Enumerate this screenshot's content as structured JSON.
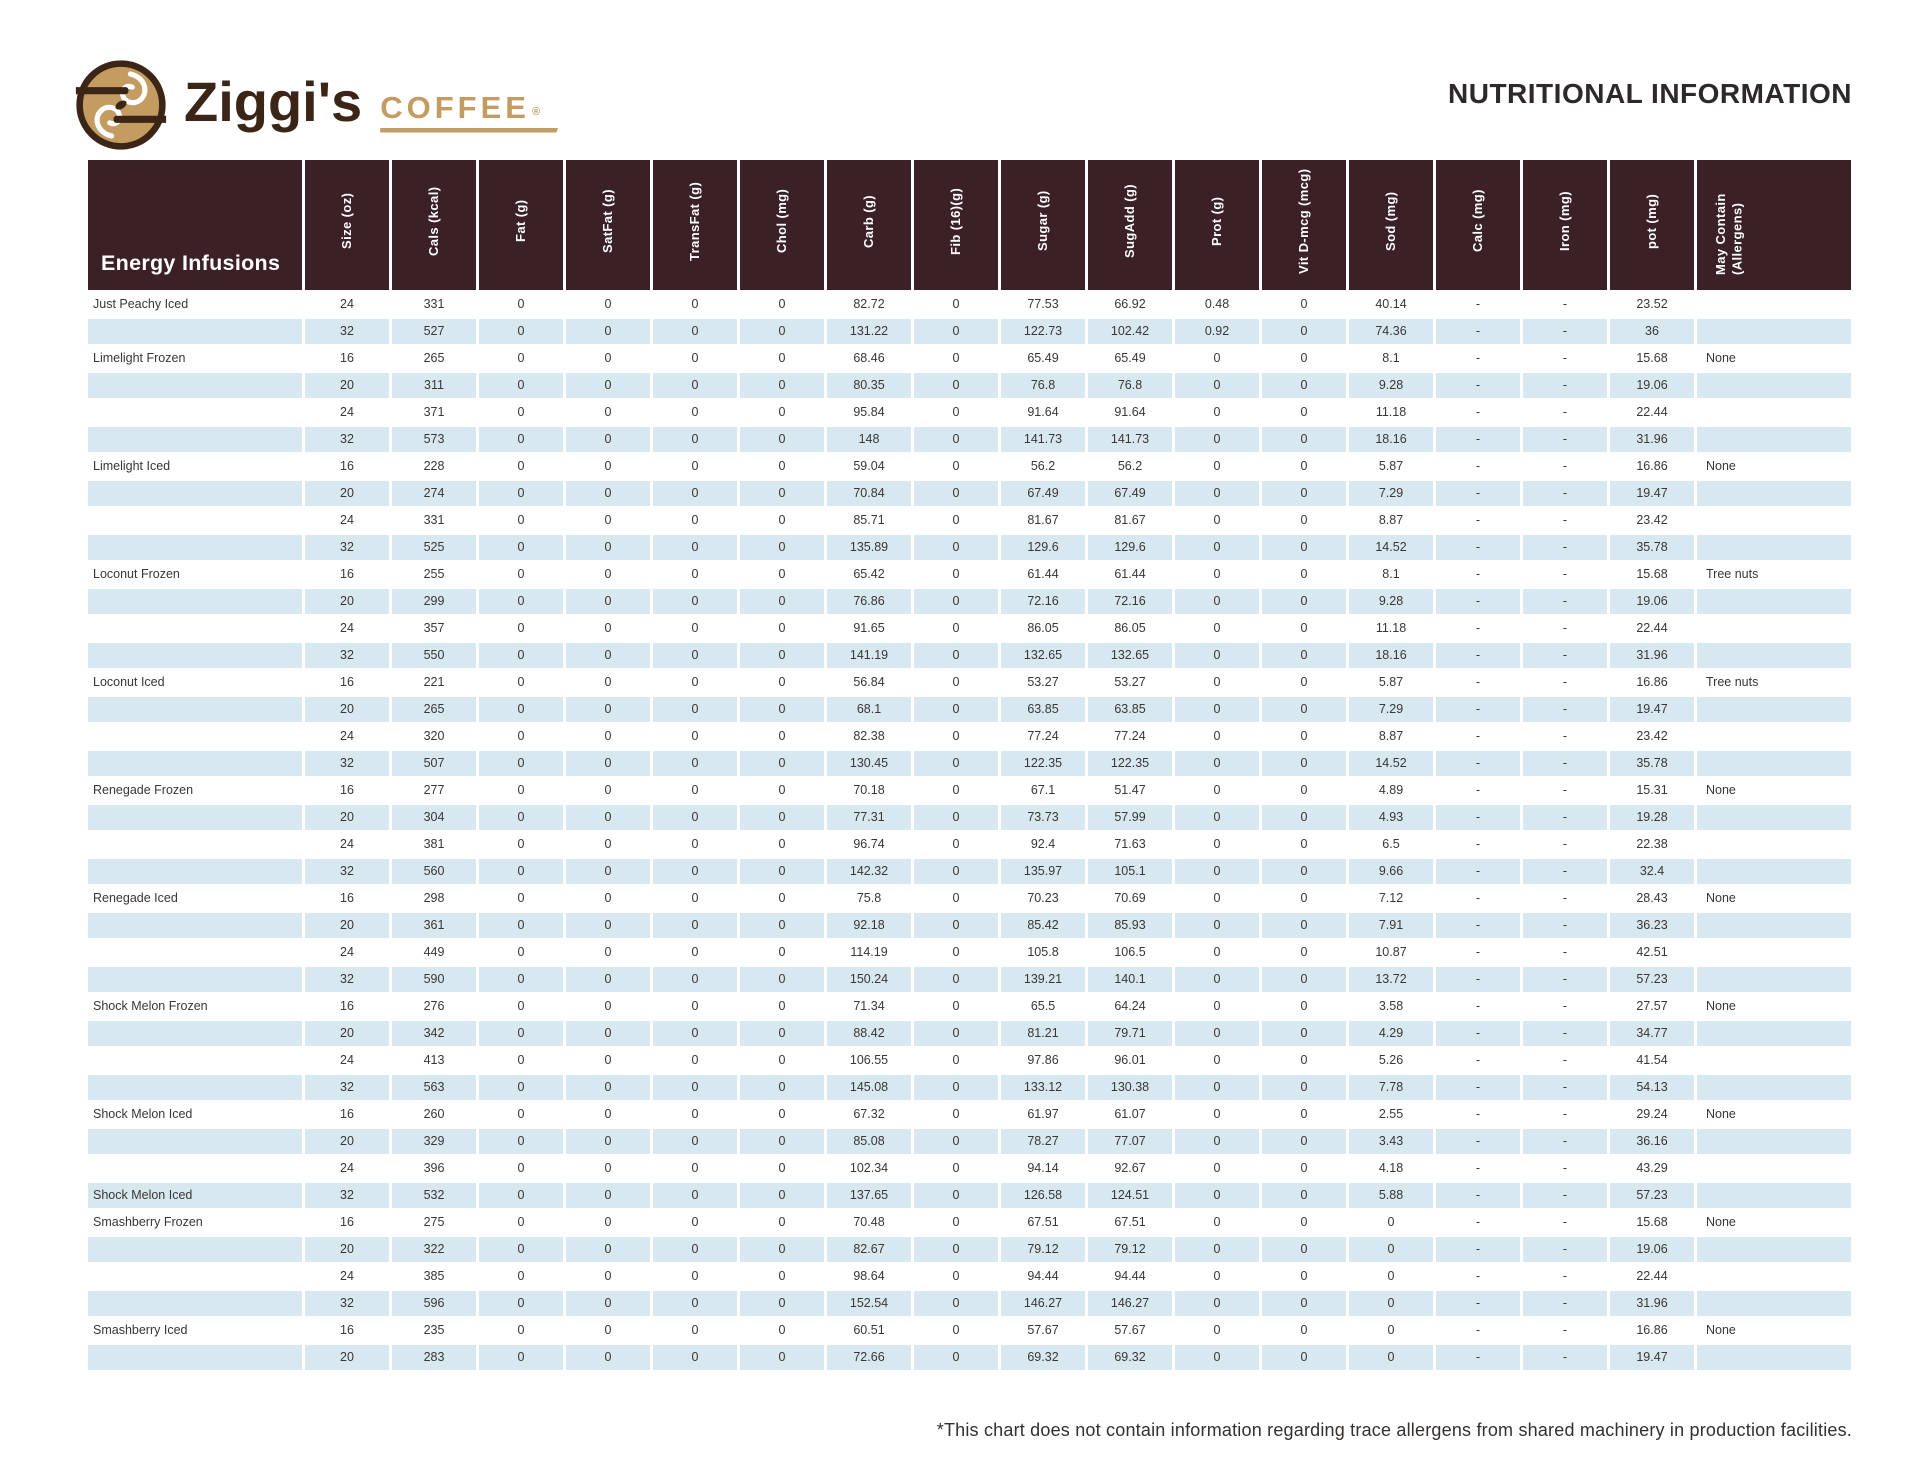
{
  "page": {
    "title": "NUTRITIONAL INFORMATION",
    "footnote": "*This chart does not contain information regarding trace allergens from shared machinery in production facilities."
  },
  "logo": {
    "brand": "Ziggi's",
    "brand_sub": "COFFEE",
    "registered_mark": "®"
  },
  "colors": {
    "header_bg": "#3b2125",
    "row_alt_bg": "#d8e8f0",
    "brand_dark": "#3b2517",
    "brand_tan": "#c49b61",
    "text": "#3a3634"
  },
  "table": {
    "group_header": "Energy Infusions",
    "columns": [
      "Size (oz)",
      "Cals (kcal)",
      "Fat (g)",
      "SatFat (g)",
      "TransFat (g)",
      "Chol (mg)",
      "Carb (g)",
      "Fib (16)(g)",
      "Sugar (g)",
      "SugAdd (g)",
      "Prot (g)",
      "Vit D-mcg (mcg)",
      "Sod (mg)",
      "Calc (mg)",
      "Iron (mg)",
      "pot (mg)",
      "May Contain (Allergens)"
    ],
    "rows": [
      {
        "name": "Just Peachy Iced",
        "values": [
          "24",
          "331",
          "0",
          "0",
          "0",
          "0",
          "82.72",
          "0",
          "77.53",
          "66.92",
          "0.48",
          "0",
          "40.14",
          "-",
          "-",
          "23.52"
        ],
        "allergen": ""
      },
      {
        "name": "",
        "values": [
          "32",
          "527",
          "0",
          "0",
          "0",
          "0",
          "131.22",
          "0",
          "122.73",
          "102.42",
          "0.92",
          "0",
          "74.36",
          "-",
          "-",
          "36"
        ],
        "allergen": ""
      },
      {
        "name": "Limelight Frozen",
        "values": [
          "16",
          "265",
          "0",
          "0",
          "0",
          "0",
          "68.46",
          "0",
          "65.49",
          "65.49",
          "0",
          "0",
          "8.1",
          "-",
          "-",
          "15.68"
        ],
        "allergen": "None"
      },
      {
        "name": "",
        "values": [
          "20",
          "311",
          "0",
          "0",
          "0",
          "0",
          "80.35",
          "0",
          "76.8",
          "76.8",
          "0",
          "0",
          "9.28",
          "-",
          "-",
          "19.06"
        ],
        "allergen": ""
      },
      {
        "name": "",
        "values": [
          "24",
          "371",
          "0",
          "0",
          "0",
          "0",
          "95.84",
          "0",
          "91.64",
          "91.64",
          "0",
          "0",
          "11.18",
          "-",
          "-",
          "22.44"
        ],
        "allergen": ""
      },
      {
        "name": "",
        "values": [
          "32",
          "573",
          "0",
          "0",
          "0",
          "0",
          "148",
          "0",
          "141.73",
          "141.73",
          "0",
          "0",
          "18.16",
          "-",
          "-",
          "31.96"
        ],
        "allergen": ""
      },
      {
        "name": "Limelight Iced",
        "values": [
          "16",
          "228",
          "0",
          "0",
          "0",
          "0",
          "59.04",
          "0",
          "56.2",
          "56.2",
          "0",
          "0",
          "5.87",
          "-",
          "-",
          "16.86"
        ],
        "allergen": "None"
      },
      {
        "name": "",
        "values": [
          "20",
          "274",
          "0",
          "0",
          "0",
          "0",
          "70.84",
          "0",
          "67.49",
          "67.49",
          "0",
          "0",
          "7.29",
          "-",
          "-",
          "19.47"
        ],
        "allergen": ""
      },
      {
        "name": "",
        "values": [
          "24",
          "331",
          "0",
          "0",
          "0",
          "0",
          "85.71",
          "0",
          "81.67",
          "81.67",
          "0",
          "0",
          "8.87",
          "-",
          "-",
          "23.42"
        ],
        "allergen": ""
      },
      {
        "name": "",
        "values": [
          "32",
          "525",
          "0",
          "0",
          "0",
          "0",
          "135.89",
          "0",
          "129.6",
          "129.6",
          "0",
          "0",
          "14.52",
          "-",
          "-",
          "35.78"
        ],
        "allergen": ""
      },
      {
        "name": "Loconut Frozen",
        "values": [
          "16",
          "255",
          "0",
          "0",
          "0",
          "0",
          "65.42",
          "0",
          "61.44",
          "61.44",
          "0",
          "0",
          "8.1",
          "-",
          "-",
          "15.68"
        ],
        "allergen": "Tree nuts"
      },
      {
        "name": "",
        "values": [
          "20",
          "299",
          "0",
          "0",
          "0",
          "0",
          "76.86",
          "0",
          "72.16",
          "72.16",
          "0",
          "0",
          "9.28",
          "-",
          "-",
          "19.06"
        ],
        "allergen": ""
      },
      {
        "name": "",
        "values": [
          "24",
          "357",
          "0",
          "0",
          "0",
          "0",
          "91.65",
          "0",
          "86.05",
          "86.05",
          "0",
          "0",
          "11.18",
          "-",
          "-",
          "22.44"
        ],
        "allergen": ""
      },
      {
        "name": "",
        "values": [
          "32",
          "550",
          "0",
          "0",
          "0",
          "0",
          "141.19",
          "0",
          "132.65",
          "132.65",
          "0",
          "0",
          "18.16",
          "-",
          "-",
          "31.96"
        ],
        "allergen": ""
      },
      {
        "name": "Loconut Iced",
        "values": [
          "16",
          "221",
          "0",
          "0",
          "0",
          "0",
          "56.84",
          "0",
          "53.27",
          "53.27",
          "0",
          "0",
          "5.87",
          "-",
          "-",
          "16.86"
        ],
        "allergen": "Tree nuts"
      },
      {
        "name": "",
        "values": [
          "20",
          "265",
          "0",
          "0",
          "0",
          "0",
          "68.1",
          "0",
          "63.85",
          "63.85",
          "0",
          "0",
          "7.29",
          "-",
          "-",
          "19.47"
        ],
        "allergen": ""
      },
      {
        "name": "",
        "values": [
          "24",
          "320",
          "0",
          "0",
          "0",
          "0",
          "82.38",
          "0",
          "77.24",
          "77.24",
          "0",
          "0",
          "8.87",
          "-",
          "-",
          "23.42"
        ],
        "allergen": ""
      },
      {
        "name": "",
        "values": [
          "32",
          "507",
          "0",
          "0",
          "0",
          "0",
          "130.45",
          "0",
          "122.35",
          "122.35",
          "0",
          "0",
          "14.52",
          "-",
          "-",
          "35.78"
        ],
        "allergen": ""
      },
      {
        "name": "Renegade Frozen",
        "values": [
          "16",
          "277",
          "0",
          "0",
          "0",
          "0",
          "70.18",
          "0",
          "67.1",
          "51.47",
          "0",
          "0",
          "4.89",
          "-",
          "-",
          "15.31"
        ],
        "allergen": "None"
      },
      {
        "name": "",
        "values": [
          "20",
          "304",
          "0",
          "0",
          "0",
          "0",
          "77.31",
          "0",
          "73.73",
          "57.99",
          "0",
          "0",
          "4.93",
          "-",
          "-",
          "19.28"
        ],
        "allergen": ""
      },
      {
        "name": "",
        "values": [
          "24",
          "381",
          "0",
          "0",
          "0",
          "0",
          "96.74",
          "0",
          "92.4",
          "71.63",
          "0",
          "0",
          "6.5",
          "-",
          "-",
          "22.38"
        ],
        "allergen": ""
      },
      {
        "name": "",
        "values": [
          "32",
          "560",
          "0",
          "0",
          "0",
          "0",
          "142.32",
          "0",
          "135.97",
          "105.1",
          "0",
          "0",
          "9.66",
          "-",
          "-",
          "32.4"
        ],
        "allergen": ""
      },
      {
        "name": "Renegade Iced",
        "values": [
          "16",
          "298",
          "0",
          "0",
          "0",
          "0",
          "75.8",
          "0",
          "70.23",
          "70.69",
          "0",
          "0",
          "7.12",
          "-",
          "-",
          "28.43"
        ],
        "allergen": "None"
      },
      {
        "name": "",
        "values": [
          "20",
          "361",
          "0",
          "0",
          "0",
          "0",
          "92.18",
          "0",
          "85.42",
          "85.93",
          "0",
          "0",
          "7.91",
          "-",
          "-",
          "36.23"
        ],
        "allergen": ""
      },
      {
        "name": "",
        "values": [
          "24",
          "449",
          "0",
          "0",
          "0",
          "0",
          "114.19",
          "0",
          "105.8",
          "106.5",
          "0",
          "0",
          "10.87",
          "-",
          "-",
          "42.51"
        ],
        "allergen": ""
      },
      {
        "name": "",
        "values": [
          "32",
          "590",
          "0",
          "0",
          "0",
          "0",
          "150.24",
          "0",
          "139.21",
          "140.1",
          "0",
          "0",
          "13.72",
          "-",
          "-",
          "57.23"
        ],
        "allergen": ""
      },
      {
        "name": "Shock Melon Frozen",
        "values": [
          "16",
          "276",
          "0",
          "0",
          "0",
          "0",
          "71.34",
          "0",
          "65.5",
          "64.24",
          "0",
          "0",
          "3.58",
          "-",
          "-",
          "27.57"
        ],
        "allergen": "None"
      },
      {
        "name": "",
        "values": [
          "20",
          "342",
          "0",
          "0",
          "0",
          "0",
          "88.42",
          "0",
          "81.21",
          "79.71",
          "0",
          "0",
          "4.29",
          "-",
          "-",
          "34.77"
        ],
        "allergen": ""
      },
      {
        "name": "",
        "values": [
          "24",
          "413",
          "0",
          "0",
          "0",
          "0",
          "106.55",
          "0",
          "97.86",
          "96.01",
          "0",
          "0",
          "5.26",
          "-",
          "-",
          "41.54"
        ],
        "allergen": ""
      },
      {
        "name": "",
        "values": [
          "32",
          "563",
          "0",
          "0",
          "0",
          "0",
          "145.08",
          "0",
          "133.12",
          "130.38",
          "0",
          "0",
          "7.78",
          "-",
          "-",
          "54.13"
        ],
        "allergen": ""
      },
      {
        "name": "Shock Melon Iced",
        "values": [
          "16",
          "260",
          "0",
          "0",
          "0",
          "0",
          "67.32",
          "0",
          "61.97",
          "61.07",
          "0",
          "0",
          "2.55",
          "-",
          "-",
          "29.24"
        ],
        "allergen": "None"
      },
      {
        "name": "",
        "values": [
          "20",
          "329",
          "0",
          "0",
          "0",
          "0",
          "85.08",
          "0",
          "78.27",
          "77.07",
          "0",
          "0",
          "3.43",
          "-",
          "-",
          "36.16"
        ],
        "allergen": ""
      },
      {
        "name": "",
        "values": [
          "24",
          "396",
          "0",
          "0",
          "0",
          "0",
          "102.34",
          "0",
          "94.14",
          "92.67",
          "0",
          "0",
          "4.18",
          "-",
          "-",
          "43.29"
        ],
        "allergen": ""
      },
      {
        "name": "Shock Melon Iced",
        "values": [
          "32",
          "532",
          "0",
          "0",
          "0",
          "0",
          "137.65",
          "0",
          "126.58",
          "124.51",
          "0",
          "0",
          "5.88",
          "-",
          "-",
          "57.23"
        ],
        "allergen": ""
      },
      {
        "name": "Smashberry Frozen",
        "values": [
          "16",
          "275",
          "0",
          "0",
          "0",
          "0",
          "70.48",
          "0",
          "67.51",
          "67.51",
          "0",
          "0",
          "0",
          "-",
          "-",
          "15.68"
        ],
        "allergen": "None"
      },
      {
        "name": "",
        "values": [
          "20",
          "322",
          "0",
          "0",
          "0",
          "0",
          "82.67",
          "0",
          "79.12",
          "79.12",
          "0",
          "0",
          "0",
          "-",
          "-",
          "19.06"
        ],
        "allergen": ""
      },
      {
        "name": "",
        "values": [
          "24",
          "385",
          "0",
          "0",
          "0",
          "0",
          "98.64",
          "0",
          "94.44",
          "94.44",
          "0",
          "0",
          "0",
          "-",
          "-",
          "22.44"
        ],
        "allergen": ""
      },
      {
        "name": "",
        "values": [
          "32",
          "596",
          "0",
          "0",
          "0",
          "0",
          "152.54",
          "0",
          "146.27",
          "146.27",
          "0",
          "0",
          "0",
          "-",
          "-",
          "31.96"
        ],
        "allergen": ""
      },
      {
        "name": "Smashberry Iced",
        "values": [
          "16",
          "235",
          "0",
          "0",
          "0",
          "0",
          "60.51",
          "0",
          "57.67",
          "57.67",
          "0",
          "0",
          "0",
          "-",
          "-",
          "16.86"
        ],
        "allergen": "None"
      },
      {
        "name": "",
        "values": [
          "20",
          "283",
          "0",
          "0",
          "0",
          "0",
          "72.66",
          "0",
          "69.32",
          "69.32",
          "0",
          "0",
          "0",
          "-",
          "-",
          "19.47"
        ],
        "allergen": ""
      }
    ]
  }
}
